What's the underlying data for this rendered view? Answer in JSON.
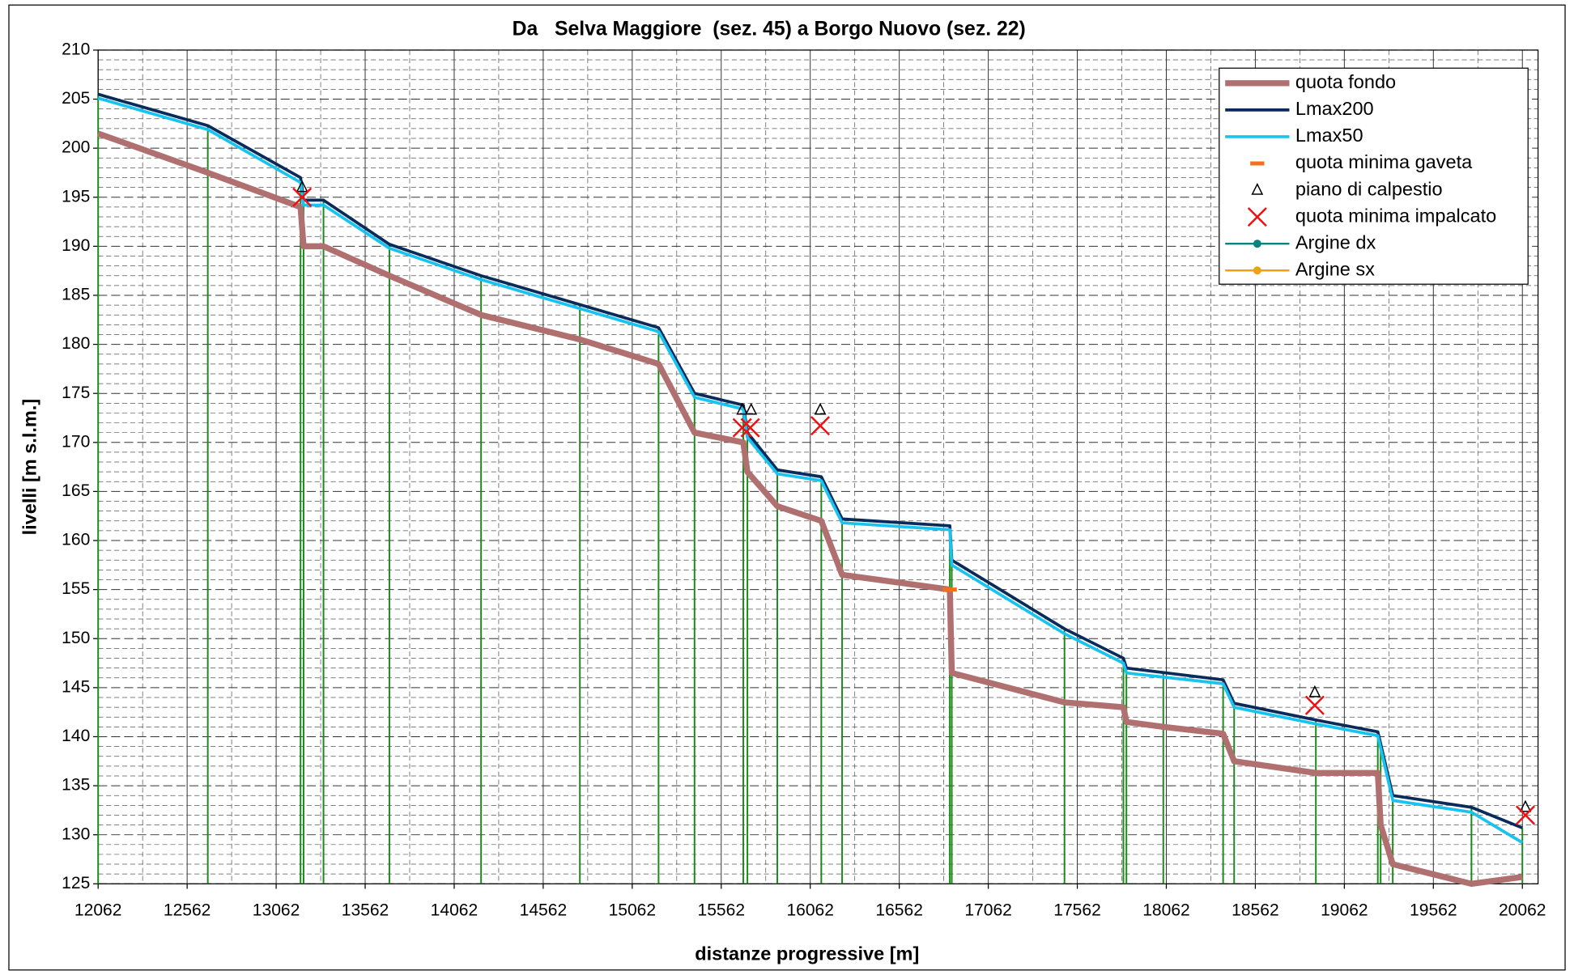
{
  "chart_data": {
    "type": "line",
    "title": "Da   Selva Maggiore  (sez. 45) a Borgo Nuovo (sez. 22)",
    "x_label": "distanze progressive [m]",
    "y_label": "livelli [m s.l.m.]",
    "xlim": [
      12062,
      20150
    ],
    "xticks": [
      12062,
      12562,
      13062,
      13562,
      14062,
      14562,
      15062,
      15562,
      16062,
      16562,
      17062,
      17562,
      18062,
      18562,
      19062,
      19562,
      20062
    ],
    "ylim": [
      125,
      210
    ],
    "yticks": [
      125,
      130,
      135,
      140,
      145,
      150,
      155,
      160,
      165,
      170,
      175,
      180,
      185,
      190,
      195,
      200,
      205,
      210
    ],
    "grid": true,
    "legend": "upper right",
    "series": [
      {
        "name": "quota fondo",
        "color": "#b07070",
        "marker": "none",
        "x": [
          12062,
          12678,
          13199,
          13216,
          13328,
          13698,
          14213,
          14768,
          15210,
          15412,
          15686,
          15709,
          15877,
          16124,
          16241,
          16846,
          16857,
          17490,
          17821,
          17838,
          18045,
          18381,
          18443,
          18902,
          19250,
          19266,
          19334,
          19776,
          20062
        ],
        "values": [
          201.5,
          197.5,
          194,
          190,
          190,
          187,
          183,
          180.5,
          178,
          171,
          170,
          167,
          163.5,
          162,
          156.5,
          155,
          146.5,
          143.5,
          143,
          141.5,
          141,
          140.3,
          137.5,
          136.3,
          136.3,
          131,
          127,
          125,
          125.7
        ]
      },
      {
        "name": "Lmax200",
        "color": "#0a2a5a",
        "marker": "none",
        "x": [
          12062,
          12678,
          13199,
          13216,
          13328,
          13698,
          14213,
          15210,
          15412,
          15686,
          15709,
          15877,
          16124,
          16241,
          16846,
          16857,
          17490,
          17821,
          17838,
          18381,
          18443,
          18902,
          19250,
          19334,
          19776,
          20062
        ],
        "values": [
          205.5,
          202.3,
          197,
          194.7,
          194.7,
          190.2,
          187,
          181.7,
          175,
          173.8,
          171,
          167.2,
          166.5,
          162.2,
          161.5,
          158,
          151,
          148,
          147,
          145.8,
          143.4,
          141.7,
          140.5,
          134,
          132.8,
          130.7
        ]
      },
      {
        "name": "Lmax50",
        "color": "#19c3f0",
        "marker": "none",
        "x": [
          12062,
          12678,
          13199,
          13216,
          13328,
          13698,
          14213,
          15210,
          15412,
          15686,
          15709,
          15877,
          16124,
          16241,
          16846,
          16857,
          17490,
          17821,
          17838,
          18381,
          18443,
          18902,
          19250,
          19334,
          19776,
          20062
        ],
        "values": [
          205.1,
          201.9,
          196.5,
          194.2,
          194.2,
          189.8,
          186.6,
          181.3,
          174.6,
          173.4,
          170.5,
          166.8,
          166.1,
          161.8,
          161.1,
          157.5,
          150.5,
          147.5,
          146.5,
          145.4,
          143,
          141.3,
          140.1,
          133.5,
          132.3,
          129.2
        ]
      },
      {
        "name": "quota minima gaveta",
        "color": "#f07020",
        "marker": "dash",
        "x": [
          16846
        ],
        "values": [
          155
        ]
      },
      {
        "name": "piano di calpestio",
        "color": "#000000",
        "marker": "triangle",
        "x": [
          13208,
          15680,
          15730,
          16118,
          18896,
          20079
        ],
        "values": [
          196,
          173.3,
          173.3,
          173.3,
          144.5,
          132.8
        ]
      },
      {
        "name": "quota minima impalcato",
        "color": "#ee1111",
        "marker": "cross",
        "x": [
          13208,
          15680,
          15725,
          16118,
          18896,
          20079
        ],
        "values": [
          195,
          171.5,
          171.5,
          171.7,
          143.2,
          132
        ]
      },
      {
        "name": "Argine dx",
        "color": "#0f8080",
        "marker": "dot",
        "x": [],
        "values": []
      },
      {
        "name": "Argine sx",
        "color": "#f0a010",
        "marker": "dot",
        "x": [],
        "values": []
      }
    ]
  }
}
